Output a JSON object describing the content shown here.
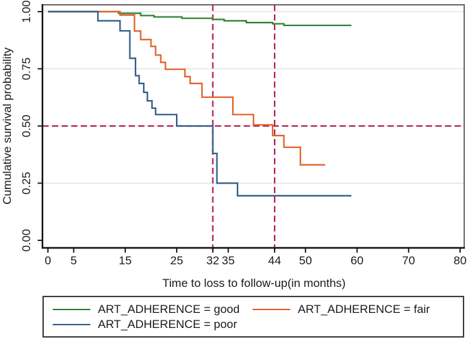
{
  "figure_type": "kaplan_meier_survival_plot",
  "axes": {
    "y": {
      "title": "Cumulative survival probability",
      "tick_values": [
        1.0,
        0.75,
        0.5,
        0.25,
        0.0
      ],
      "tick_labels": [
        "1.00",
        "0.75",
        "0.50",
        "0.25",
        "0.00"
      ],
      "range": [
        0,
        1
      ]
    },
    "x": {
      "title": "Time to loss to follow-up(in months)",
      "tick_values": [
        0,
        5,
        15,
        25,
        32,
        35,
        44,
        50,
        60,
        70,
        80
      ],
      "tick_labels": [
        "0",
        "5",
        "15",
        "25",
        "32",
        "35",
        "44",
        "50",
        "60",
        "70",
        "80"
      ],
      "range": [
        0,
        80
      ]
    }
  },
  "chart_data": {
    "type": "line",
    "subtype": "step-survival-curves",
    "title": "",
    "xlabel": "Time to loss to follow-up(in months)",
    "ylabel": "Cumulative survival probability",
    "xlim": [
      0,
      80
    ],
    "ylim": [
      0,
      1
    ],
    "x_ticks": [
      0,
      5,
      15,
      25,
      32,
      35,
      44,
      50,
      60,
      70,
      80
    ],
    "y_ticks": [
      1.0,
      0.75,
      0.5,
      0.25,
      0.0
    ],
    "y_tick_labels": [
      "1.00",
      "0.75",
      "0.50",
      "0.25",
      "0.00"
    ],
    "grid": true,
    "legend_position": "bottom",
    "reference_lines": {
      "style": "dashed",
      "color": "#b2285a",
      "horizontal_y": [
        0.5
      ],
      "vertical_x": [
        32,
        44
      ]
    },
    "series": [
      {
        "name": "ART_ADHERENCE = good",
        "key": "good",
        "color": "#2f8132",
        "end_x": 58.9,
        "steps": [
          [
            0,
            1.0
          ],
          [
            13.7,
            0.993
          ],
          [
            18,
            0.983
          ],
          [
            20.6,
            0.977
          ],
          [
            26,
            0.971
          ],
          [
            32,
            0.966
          ],
          [
            34.2,
            0.96
          ],
          [
            38.5,
            0.952
          ],
          [
            43.6,
            0.947
          ],
          [
            45.8,
            0.94
          ]
        ]
      },
      {
        "name": "ART_ADHERENCE = fair",
        "key": "fair",
        "color": "#e4622b",
        "end_x": 53.8,
        "steps": [
          [
            0,
            1.0
          ],
          [
            14,
            0.985
          ],
          [
            16.8,
            0.915
          ],
          [
            18,
            0.878
          ],
          [
            20,
            0.848
          ],
          [
            20.9,
            0.81
          ],
          [
            21.9,
            0.778
          ],
          [
            22.8,
            0.748
          ],
          [
            26.6,
            0.716
          ],
          [
            27.6,
            0.686
          ],
          [
            29.9,
            0.626
          ],
          [
            35.9,
            0.55
          ],
          [
            39.9,
            0.505
          ],
          [
            43.6,
            0.458
          ],
          [
            45.8,
            0.407
          ],
          [
            49,
            0.33
          ]
        ]
      },
      {
        "name": "ART_ADHERENCE = poor",
        "key": "poor",
        "color": "#335f8a",
        "end_x": 58.9,
        "steps": [
          [
            0,
            1.0
          ],
          [
            9.7,
            0.96
          ],
          [
            14,
            0.916
          ],
          [
            15.9,
            0.796
          ],
          [
            17,
            0.72
          ],
          [
            17.7,
            0.686
          ],
          [
            18.6,
            0.647
          ],
          [
            19.3,
            0.61
          ],
          [
            20.2,
            0.578
          ],
          [
            20.9,
            0.55
          ],
          [
            25,
            0.5
          ],
          [
            32,
            0.38
          ],
          [
            32.8,
            0.25
          ],
          [
            36.8,
            0.195
          ]
        ]
      }
    ]
  },
  "colors": {
    "gridline": "#e0e0e0",
    "plot_border": "#4a4a4a",
    "spine": "#141414",
    "text": "#1a1a1a",
    "reference_dashed": "#b2285a"
  }
}
